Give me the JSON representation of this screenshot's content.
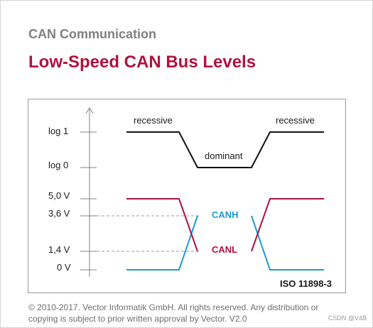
{
  "header": {
    "subtitle": "CAN Communication",
    "title": "Low-Speed CAN Bus Levels"
  },
  "diagram": {
    "y_labels": {
      "log1": "log 1",
      "log0": "log 0",
      "v5": "5,0 V",
      "v36": "3,6 V",
      "v14": "1,4 V",
      "v0": "0 V"
    },
    "state_labels": {
      "recessive_left": "recessive",
      "dominant": "dominant",
      "recessive_right": "recessive"
    },
    "signal_labels": {
      "canh": "CANH",
      "canl": "CANL"
    },
    "standard": "ISO 11898-3",
    "colors": {
      "logic": "#111111",
      "canh": "#1a9bd0",
      "canl": "#b0123f",
      "axis": "#808080",
      "dashed": "#9a9a9a"
    }
  },
  "footer": {
    "copyright_line1": "© 2010-2017. Vector Informatik GmbH. All rights reserved. Any distribution or",
    "copyright_line2": "copying is subject to prior written approval by Vector. V2.0",
    "watermark": "CSDN @V4B"
  }
}
